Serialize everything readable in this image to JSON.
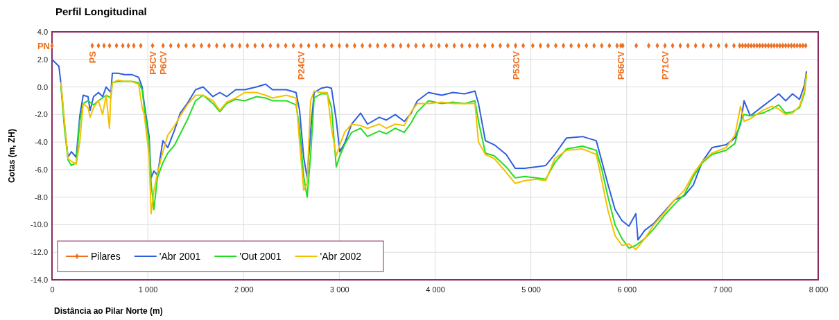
{
  "chart_data": {
    "type": "line",
    "title": "Perfil Longitudinal",
    "xlabel": "Distância ao Pilar Norte (m)",
    "ylabel": "Cotas (m, ZH)",
    "xlim": [
      0,
      8000
    ],
    "xticks": [
      0,
      {
        "value": 1000,
        "label": "1 000"
      },
      {
        "value": 2000,
        "label": "2 000"
      },
      {
        "value": 3000,
        "label": "3 000"
      },
      {
        "value": 4000,
        "label": "4 000"
      },
      {
        "value": 5000,
        "label": "5 000"
      },
      {
        "value": 6000,
        "label": "6 000"
      },
      {
        "value": 7000,
        "label": "7 000"
      },
      {
        "value": 8000,
        "label": "8 000"
      }
    ],
    "ylim": [
      -14,
      4
    ],
    "yticks": [
      {
        "value": -14,
        "label": "-14.0"
      },
      {
        "value": -12,
        "label": "-12.0"
      },
      {
        "value": -10,
        "label": "-10.0"
      },
      {
        "value": -8,
        "label": "-8.0"
      },
      {
        "value": -6,
        "label": "-6.0"
      },
      {
        "value": -4,
        "label": "-4.0"
      },
      {
        "value": -2,
        "label": "-2.0"
      },
      {
        "value": 0,
        "label": "0.0"
      },
      {
        "value": 2,
        "label": "2.0"
      },
      {
        "value": 4,
        "label": "4.0"
      }
    ],
    "grid": true,
    "legend": "bottom left",
    "line_style": "solid",
    "series": [
      {
        "name": "Pilares",
        "type": "scatter",
        "marker": "diamond",
        "color": "#f07020",
        "x": [
          0,
          420,
          485,
          543,
          601,
          673,
          739,
          797,
          854,
          927,
          1050,
          1160,
          1240,
          1320,
          1400,
          1480,
          1560,
          1640,
          1720,
          1800,
          1880,
          1960,
          2040,
          2120,
          2200,
          2280,
          2360,
          2440,
          2520,
          2600,
          2680,
          2760,
          2840,
          2920,
          3000,
          3080,
          3160,
          3240,
          3320,
          3400,
          3480,
          3560,
          3640,
          3720,
          3800,
          3880,
          3960,
          4040,
          4120,
          4200,
          4280,
          4360,
          4440,
          4520,
          4600,
          4680,
          4760,
          4840,
          4920,
          5020,
          5100,
          5180,
          5260,
          5340,
          5420,
          5500,
          5580,
          5660,
          5740,
          5820,
          5900,
          5940,
          5960,
          6100,
          6230,
          6320,
          6400,
          6480,
          6560,
          6640,
          6720,
          6800,
          6880,
          6960,
          7040,
          7120,
          7180,
          7210,
          7240,
          7270,
          7300,
          7330,
          7360,
          7390,
          7420,
          7450,
          7480,
          7510,
          7540,
          7570,
          7600,
          7630,
          7660,
          7690,
          7720,
          7750,
          7780,
          7810,
          7840,
          7870
        ],
        "values": [
          3,
          3,
          3,
          3,
          3,
          3,
          3,
          3,
          3,
          3,
          3,
          3,
          3,
          3,
          3,
          3,
          3,
          3,
          3,
          3,
          3,
          3,
          3,
          3,
          3,
          3,
          3,
          3,
          3,
          3,
          3,
          3,
          3,
          3,
          3,
          3,
          3,
          3,
          3,
          3,
          3,
          3,
          3,
          3,
          3,
          3,
          3,
          3,
          3,
          3,
          3,
          3,
          3,
          3,
          3,
          3,
          3,
          3,
          3,
          3,
          3,
          3,
          3,
          3,
          3,
          3,
          3,
          3,
          3,
          3,
          3,
          3,
          3,
          3,
          3,
          3,
          3,
          3,
          3,
          3,
          3,
          3,
          3,
          3,
          3,
          3,
          3,
          3,
          3,
          3,
          3,
          3,
          3,
          3,
          3,
          3,
          3,
          3,
          3,
          3,
          3,
          3,
          3,
          3,
          3,
          3,
          3,
          3,
          3,
          3
        ]
      },
      {
        "name": "'Abr 2001",
        "color": "#2e5ee0",
        "x": [
          0,
          72,
          94,
          130,
          167,
          203,
          253,
          290,
          326,
          376,
          398,
          434,
          485,
          529,
          565,
          615,
          630,
          688,
          760,
          833,
          905,
          941,
          963,
          1014,
          1035,
          1064,
          1100,
          1158,
          1209,
          1281,
          1339,
          1412,
          1499,
          1578,
          1680,
          1752,
          1824,
          1919,
          2013,
          2136,
          2230,
          2302,
          2447,
          2548,
          2585,
          2628,
          2664,
          2700,
          2737,
          2809,
          2874,
          2918,
          2968,
          3005,
          3055,
          3128,
          3222,
          3294,
          3417,
          3490,
          3584,
          3678,
          3750,
          3815,
          3931,
          4069,
          4185,
          4308,
          4416,
          4453,
          4525,
          4619,
          4742,
          4836,
          4938,
          5054,
          5155,
          5249,
          5372,
          5539,
          5683,
          5741,
          5806,
          5879,
          5951,
          6024,
          6096,
          6118,
          6190,
          6284,
          6385,
          6501,
          6603,
          6697,
          6791,
          6892,
          7037,
          7131,
          7189,
          7226,
          7291,
          7421,
          7515,
          7588,
          7660,
          7732,
          7805,
          7855,
          7877
        ],
        "values": [
          2.0,
          1.5,
          0.2,
          -2.7,
          -5.1,
          -4.7,
          -5.1,
          -2.1,
          -0.6,
          -0.7,
          -1.7,
          -0.7,
          -0.4,
          -0.7,
          0.0,
          -0.4,
          1.0,
          1.0,
          0.9,
          0.9,
          0.7,
          0.0,
          -1.2,
          -3.6,
          -6.6,
          -6.1,
          -6.4,
          -3.9,
          -4.4,
          -3.1,
          -1.9,
          -1.2,
          -0.2,
          0.0,
          -0.7,
          -0.4,
          -0.7,
          -0.2,
          -0.2,
          0.0,
          0.2,
          -0.2,
          -0.2,
          -0.4,
          -1.7,
          -5.1,
          -6.6,
          -3.2,
          -0.4,
          -0.1,
          0.0,
          -0.1,
          -2.4,
          -4.7,
          -4.1,
          -2.7,
          -1.9,
          -2.7,
          -2.2,
          -2.4,
          -2.0,
          -2.5,
          -1.9,
          -1.0,
          -0.4,
          -0.6,
          -0.4,
          -0.5,
          -0.3,
          -1.2,
          -3.9,
          -4.2,
          -4.9,
          -5.9,
          -5.9,
          -5.8,
          -5.7,
          -4.9,
          -3.7,
          -3.6,
          -3.9,
          -5.4,
          -7.1,
          -8.9,
          -9.7,
          -10.1,
          -9.2,
          -11.1,
          -10.4,
          -9.9,
          -9.1,
          -8.2,
          -7.9,
          -7.1,
          -5.4,
          -4.4,
          -4.2,
          -3.7,
          -2.7,
          -1.0,
          -2.1,
          -1.4,
          -0.9,
          -0.5,
          -1.0,
          -0.5,
          -0.9,
          0.1,
          1.1
        ]
      },
      {
        "name": "'Out 2001",
        "color": "#22dd22",
        "x": [
          94,
          130,
          167,
          203,
          253,
          290,
          326,
          376,
          434,
          485,
          565,
          615,
          630,
          688,
          760,
          833,
          905,
          941,
          963,
          1014,
          1035,
          1064,
          1100,
          1158,
          1209,
          1281,
          1339,
          1412,
          1499,
          1578,
          1680,
          1752,
          1824,
          1919,
          2013,
          2136,
          2230,
          2302,
          2447,
          2548,
          2585,
          2628,
          2664,
          2700,
          2737,
          2809,
          2874,
          2918,
          2968,
          3005,
          3055,
          3128,
          3222,
          3294,
          3417,
          3490,
          3584,
          3678,
          3750,
          3815,
          3931,
          4069,
          4185,
          4308,
          4416,
          4453,
          4525,
          4619,
          4742,
          4836,
          4938,
          5054,
          5155,
          5249,
          5372,
          5539,
          5683,
          5741,
          5806,
          5879,
          5951,
          6024,
          6096,
          6190,
          6284,
          6385,
          6501,
          6603,
          6697,
          6791,
          6892,
          7037,
          7131,
          7189,
          7226,
          7291,
          7421,
          7515,
          7588,
          7660,
          7732,
          7805,
          7855,
          7877
        ],
        "values": [
          0.0,
          -3.0,
          -5.3,
          -5.7,
          -5.5,
          -2.5,
          -1.2,
          -1.0,
          -1.3,
          -1.0,
          -0.6,
          -0.8,
          0.3,
          0.4,
          0.4,
          0.4,
          0.3,
          -0.2,
          -1.5,
          -4.0,
          -7.0,
          -8.9,
          -6.6,
          -5.5,
          -4.8,
          -4.2,
          -3.4,
          -2.4,
          -1.0,
          -0.6,
          -1.2,
          -1.8,
          -1.2,
          -0.9,
          -1.0,
          -0.7,
          -0.8,
          -1.0,
          -1.0,
          -1.3,
          -3.0,
          -6.5,
          -8.0,
          -5.0,
          -0.8,
          -0.5,
          -0.5,
          -1.5,
          -5.8,
          -5.0,
          -4.2,
          -3.3,
          -3.0,
          -3.6,
          -3.2,
          -3.4,
          -3.0,
          -3.3,
          -2.6,
          -1.8,
          -1.0,
          -1.2,
          -1.1,
          -1.2,
          -1.0,
          -2.5,
          -4.8,
          -5.0,
          -5.8,
          -6.6,
          -6.5,
          -6.6,
          -6.7,
          -5.5,
          -4.5,
          -4.3,
          -4.6,
          -6.0,
          -8.0,
          -10.0,
          -11.0,
          -11.7,
          -11.5,
          -11.0,
          -10.3,
          -9.4,
          -8.5,
          -7.8,
          -6.5,
          -5.5,
          -4.9,
          -4.6,
          -4.1,
          -2.5,
          -2.0,
          -2.1,
          -1.9,
          -1.6,
          -1.3,
          -1.9,
          -1.8,
          -1.5,
          -0.5,
          0.8
        ]
      },
      {
        "name": "'Abr 2002",
        "color": "#f5c000",
        "x": [
          94,
          130,
          167,
          203,
          253,
          290,
          326,
          376,
          398,
          434,
          485,
          529,
          565,
          600,
          615,
          630,
          688,
          760,
          833,
          905,
          941,
          963,
          1014,
          1035,
          1064,
          1100,
          1158,
          1209,
          1281,
          1339,
          1412,
          1499,
          1578,
          1680,
          1752,
          1824,
          1919,
          2013,
          2136,
          2230,
          2302,
          2447,
          2548,
          2585,
          2628,
          2664,
          2700,
          2737,
          2809,
          2874,
          2918,
          2968,
          3005,
          3055,
          3128,
          3222,
          3294,
          3417,
          3490,
          3584,
          3678,
          3750,
          3815,
          3931,
          4069,
          4185,
          4308,
          4416,
          4453,
          4525,
          4619,
          4742,
          4836,
          4938,
          5054,
          5155,
          5249,
          5372,
          5539,
          5683,
          5741,
          5806,
          5879,
          5951,
          6024,
          6096,
          6190,
          6284,
          6385,
          6501,
          6603,
          6697,
          6791,
          6892,
          7037,
          7131,
          7189,
          7226,
          7291,
          7421,
          7515,
          7588,
          7660,
          7732,
          7805,
          7855,
          7877
        ],
        "values": [
          0.3,
          -2.5,
          -5.2,
          -5.4,
          -5.6,
          -4.0,
          -1.2,
          -1.5,
          -2.2,
          -1.5,
          -1.0,
          -2.0,
          -0.6,
          -3.0,
          -0.5,
          0.3,
          0.5,
          0.4,
          0.4,
          0.2,
          -1.5,
          -2.0,
          -5.0,
          -9.2,
          -7.5,
          -6.3,
          -4.7,
          -3.5,
          -2.8,
          -2.1,
          -1.3,
          -0.6,
          -0.6,
          -1.0,
          -1.7,
          -1.1,
          -0.8,
          -0.4,
          -0.4,
          -0.6,
          -0.8,
          -0.6,
          -0.8,
          -4.0,
          -7.5,
          -7.0,
          -1.0,
          -0.3,
          -0.4,
          -0.4,
          -3.0,
          -5.0,
          -4.2,
          -3.3,
          -2.7,
          -2.8,
          -3.0,
          -2.7,
          -3.0,
          -2.7,
          -2.8,
          -1.8,
          -1.2,
          -1.2,
          -1.1,
          -1.2,
          -1.2,
          -1.2,
          -4.0,
          -4.9,
          -5.2,
          -6.2,
          -7.0,
          -6.8,
          -6.7,
          -6.8,
          -5.2,
          -4.6,
          -4.5,
          -4.9,
          -6.8,
          -9.0,
          -10.8,
          -11.5,
          -11.4,
          -11.8,
          -11.0,
          -10.0,
          -9.2,
          -8.2,
          -7.5,
          -6.3,
          -5.4,
          -4.8,
          -4.4,
          -3.5,
          -1.4,
          -2.5,
          -2.3,
          -1.7,
          -1.4,
          -1.6,
          -2.0,
          -1.9,
          -1.4,
          -0.3,
          0.9
        ]
      }
    ],
    "annotations": [
      {
        "text": "PN",
        "x": 0,
        "y": 3
      },
      {
        "text": "PS",
        "x": 420,
        "y": 3
      },
      {
        "text": "P5CV",
        "x": 1050,
        "y": 3
      },
      {
        "text": "P6CV",
        "x": 1160,
        "y": 3
      },
      {
        "text": "P24CV",
        "x": 2600,
        "y": 3
      },
      {
        "text": "P53CV",
        "x": 4840,
        "y": 3
      },
      {
        "text": "P66CV",
        "x": 5940,
        "y": 3
      },
      {
        "text": "P71CV",
        "x": 6400,
        "y": 3
      }
    ]
  }
}
